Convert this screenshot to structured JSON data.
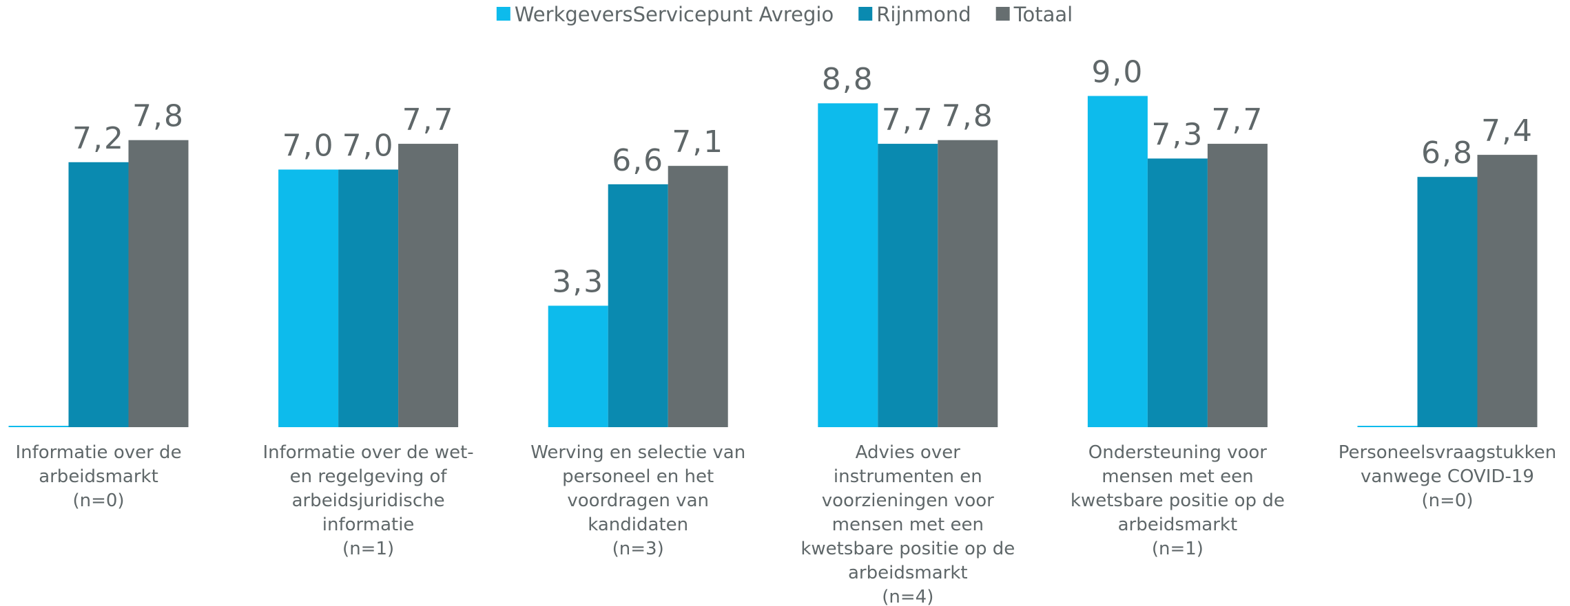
{
  "chart_data": {
    "type": "bar",
    "categories": [
      "Informatie over de arbeidsmarkt\n(n=0)",
      "Informatie over de wet- en regelgeving of arbeidsjuridische informatie\n(n=1)",
      "Werving en selectie van personeel en het voordragen van kandidaten\n(n=3)",
      "Advies over instrumenten en voorzieningen voor mensen met een kwetsbare positie op de arbeidsmarkt\n(n=4)",
      "Ondersteuning voor mensen met een kwetsbare positie op de arbeidsmarkt\n(n=1)",
      "Personeelsvraagstukken vanwege COVID-19\n(n=0)"
    ],
    "series": [
      {
        "name": "WerkgeversServicepunt Avregio",
        "color": "#0dbbec",
        "values": [
          0,
          7.0,
          3.3,
          8.8,
          9.0,
          0
        ],
        "value_labels": [
          null,
          "7,0",
          "3,3",
          "8,8",
          "9,0",
          null
        ]
      },
      {
        "name": "Rijnmond",
        "color": "#0a8ab0",
        "values": [
          7.2,
          7.0,
          6.6,
          7.7,
          7.3,
          6.8
        ],
        "value_labels": [
          "7,2",
          "7,0",
          "6,6",
          "7,7",
          "7,3",
          "6,8"
        ]
      },
      {
        "name": "Totaal",
        "color": "#666e70",
        "values": [
          7.8,
          7.7,
          7.1,
          7.8,
          7.7,
          7.4
        ],
        "value_labels": [
          "7,8",
          "7,7",
          "7,1",
          "7,8",
          "7,7",
          "7,4"
        ]
      }
    ],
    "ylim": [
      0,
      10
    ],
    "legend": "top"
  }
}
